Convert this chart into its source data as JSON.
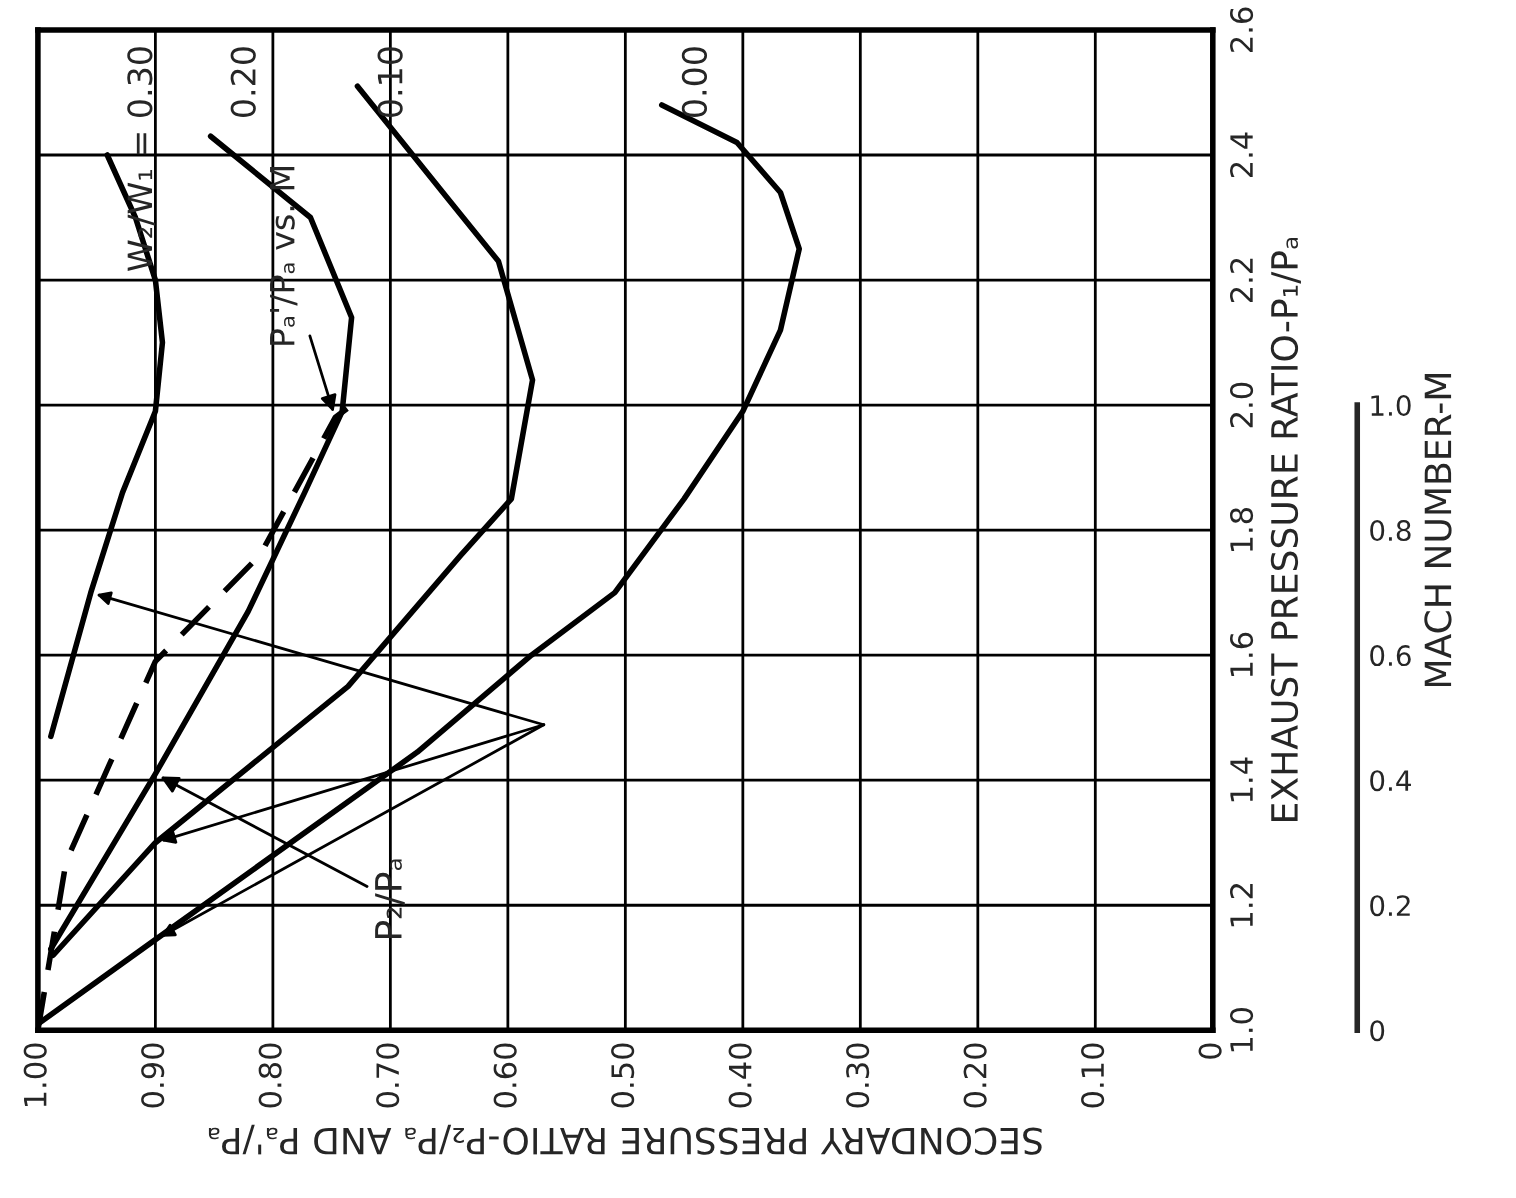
{
  "chart_data": {
    "type": "line",
    "xlabel": "SECONDARY PRESSURE RATIO-P₂/Pₐ AND Pₐ'/Pₐ",
    "ylabel": "EXHAUST PRESSURE RATIO-P₁/Pₐ",
    "y2label": "MACH NUMBER-M",
    "xlim": [
      1.0,
      0.0
    ],
    "xticks": [
      {
        "value": 1.0,
        "label": "1.00"
      },
      {
        "value": 0.9,
        "label": "0.90"
      },
      {
        "value": 0.8,
        "label": "0.80"
      },
      {
        "value": 0.7,
        "label": "0.70"
      },
      {
        "value": 0.6,
        "label": "0.60"
      },
      {
        "value": 0.5,
        "label": "0.50"
      },
      {
        "value": 0.4,
        "label": "0.40"
      },
      {
        "value": 0.3,
        "label": "0.30"
      },
      {
        "value": 0.2,
        "label": "0.20"
      },
      {
        "value": 0.1,
        "label": "0.10"
      },
      0
    ],
    "ylim": [
      1.0,
      2.6
    ],
    "yticks": [
      {
        "value": 1.0,
        "label": "1.0"
      },
      1.2,
      1.4,
      1.6,
      1.8,
      {
        "value": 2.0,
        "label": "2.0"
      },
      2.2,
      2.4,
      2.6
    ],
    "y2lim": [
      0,
      1.6
    ],
    "y2ticks": [
      0,
      0.2,
      0.4,
      0.6,
      0.8,
      {
        "value": 1.0,
        "label": "1.0"
      }
    ],
    "grid": true,
    "legend": false,
    "line_style": "solid",
    "annotations": [
      {
        "text": "P₂/Pₐ",
        "x": 0.9,
        "y": 1.41
      }
    ],
    "series": [
      {
        "name": "W₂/W₁ = 0.30",
        "color": "#000000",
        "x": [
          0.989,
          0.955,
          0.928,
          0.9,
          0.894,
          0.9,
          0.917,
          0.941
        ],
        "values": [
          1.47,
          1.7,
          1.86,
          1.99,
          2.1,
          2.2,
          2.3,
          2.4
        ]
      },
      {
        "name": "0.20",
        "color": "#000000",
        "x": [
          0.989,
          0.9,
          0.821,
          0.773,
          0.741,
          0.733,
          0.768,
          0.853
        ],
        "values": [
          1.13,
          1.41,
          1.67,
          1.86,
          1.99,
          2.14,
          2.3,
          2.43
        ]
      },
      {
        "name": "0.10",
        "color": "#000000",
        "x": [
          0.987,
          0.9,
          0.736,
          0.64,
          0.597,
          0.579,
          0.608,
          0.651,
          0.728
        ],
        "values": [
          1.12,
          1.3,
          1.55,
          1.76,
          1.85,
          2.04,
          2.23,
          2.33,
          2.51
        ]
      },
      {
        "name": "0.00",
        "color": "#000000",
        "x": [
          1.0,
          0.9,
          0.677,
          0.58,
          0.509,
          0.45,
          0.4,
          0.368,
          0.352,
          0.368,
          0.405,
          0.469
        ],
        "values": [
          1.01,
          1.145,
          1.445,
          1.6,
          1.7,
          1.85,
          1.99,
          2.12,
          2.25,
          2.34,
          2.42,
          2.48
        ]
      },
      {
        "name": "Pₐ'/Pₐ vs. M",
        "color": "#000000",
        "axis": "y2",
        "line_style": "dashed",
        "x": [
          1.0,
          0.976,
          0.9,
          0.811,
          0.747,
          0.733
        ],
        "values": [
          0.0,
          0.27,
          0.59,
          0.76,
          0.98,
          1.0
        ]
      }
    ]
  }
}
